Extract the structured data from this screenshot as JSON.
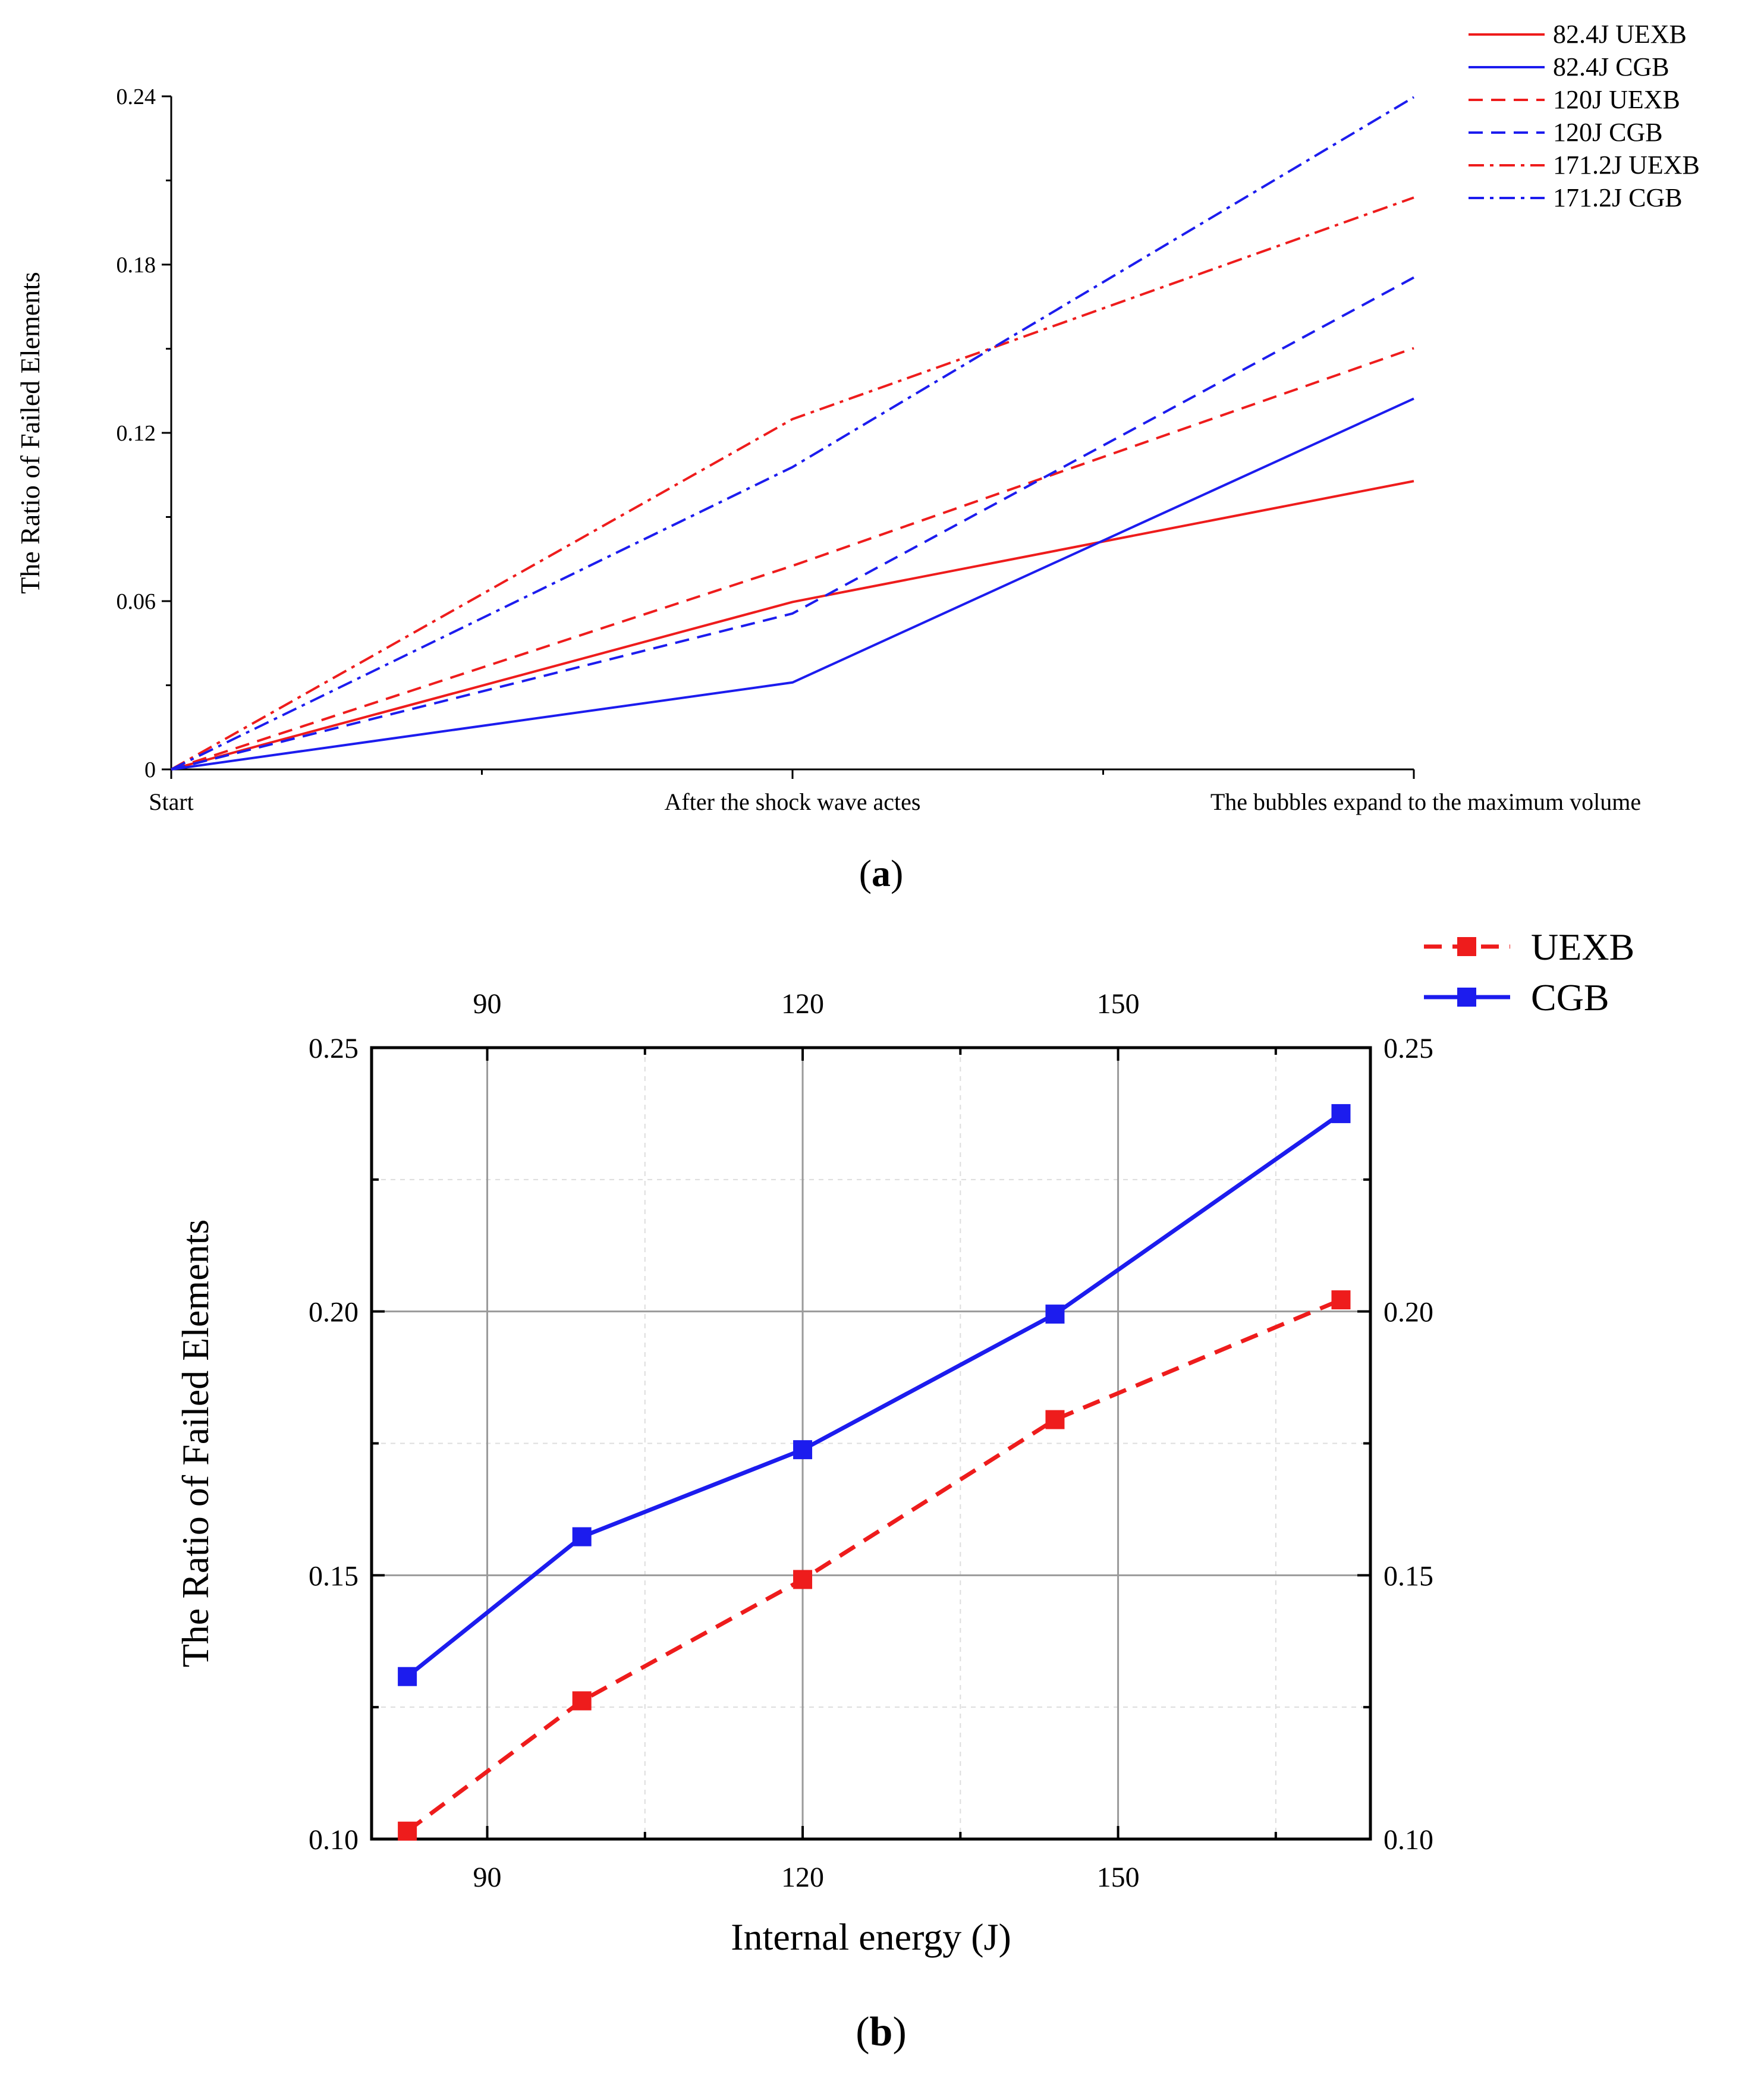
{
  "chart_data": [
    {
      "type": "line",
      "panel_label": "(a)",
      "panel_letter": "a",
      "categories": [
        "Start",
        "After the shock wave actes",
        "The bubbles expand to the maximum volume"
      ],
      "ylabel": "The Ratio of Failed Elements",
      "ylim": [
        0,
        0.24
      ],
      "yticks": [
        "0",
        "0.06",
        "0.12",
        "0.18",
        "0.24"
      ],
      "grid": false,
      "legend_position": "top-right outside",
      "series": [
        {
          "name": "82.4J  UEXB",
          "color": "#ee1c1c",
          "dash": "solid",
          "values": [
            0,
            0.0597,
            0.1028
          ]
        },
        {
          "name": "82.4J  CGB",
          "color": "#1c1cee",
          "dash": "solid",
          "values": [
            0,
            0.031,
            0.1322
          ]
        },
        {
          "name": "120J   UEXB",
          "color": "#ee1c1c",
          "dash": "dash",
          "values": [
            0,
            0.0726,
            0.1502
          ]
        },
        {
          "name": "120J   CGB",
          "color": "#1c1cee",
          "dash": "dash",
          "values": [
            0,
            0.0556,
            0.1754
          ]
        },
        {
          "name": "171.2J UEXB",
          "color": "#ee1c1c",
          "dash": "dashdot",
          "values": [
            0,
            0.1249,
            0.2039
          ]
        },
        {
          "name": "171.2J CGB",
          "color": "#1c1cee",
          "dash": "dashdot",
          "values": [
            0,
            0.1078,
            0.2397
          ]
        }
      ]
    },
    {
      "type": "line",
      "panel_label": "(b)",
      "panel_letter": "b",
      "xlabel": "Internal energy (J)",
      "ylabel": "The Ratio of Failed Elements",
      "xlim": [
        79,
        174
      ],
      "ylim": [
        0.1,
        0.25
      ],
      "xticks": [
        90,
        120,
        150
      ],
      "yticks": [
        "0.10",
        "0.15",
        "0.20",
        "0.25"
      ],
      "grid": true,
      "legend_position": "top-right outside",
      "series": [
        {
          "name": "UEXB",
          "color": "#ee1c1c",
          "dash": "dash",
          "marker": "square",
          "x": [
            82.4,
            99,
            120,
            144,
            171.2
          ],
          "y": [
            0.1015,
            0.1262,
            0.1492,
            0.1795,
            0.2022
          ]
        },
        {
          "name": "CGB",
          "color": "#1c1cee",
          "dash": "solid",
          "marker": "square",
          "x": [
            82.4,
            99,
            120,
            144,
            171.2
          ],
          "y": [
            0.1308,
            0.1573,
            0.1738,
            0.1995,
            0.2375
          ]
        }
      ]
    }
  ]
}
